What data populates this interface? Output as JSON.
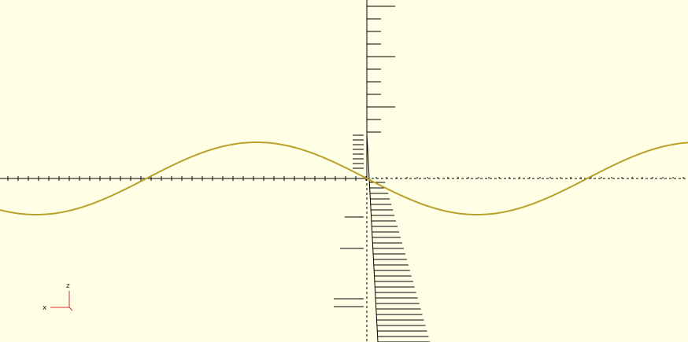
{
  "app": {
    "background_color": "#ffffe5"
  },
  "scene": {
    "curve": {
      "shape": "sine",
      "color": "#b8a02a"
    },
    "axes": {
      "color": "#000000"
    },
    "axis_indicator": {
      "x_label": "x",
      "z_label": "z",
      "color": "#d32f2f"
    }
  }
}
